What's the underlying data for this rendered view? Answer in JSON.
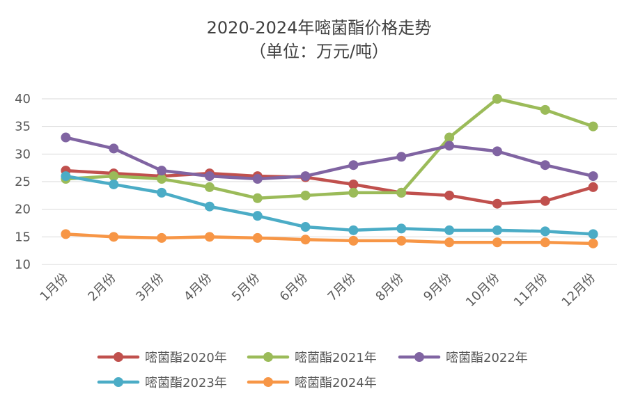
{
  "chart_data": {
    "type": "line",
    "title": "2020-2024年嘧菌酯价格走势",
    "subtitle": "（单位：万元/吨）",
    "categories": [
      "1月份",
      "2月份",
      "3月份",
      "4月份",
      "5月份",
      "6月份",
      "7月份",
      "8月份",
      "9月份",
      "10月份",
      "11月份",
      "12月份"
    ],
    "ylim": [
      10,
      40
    ],
    "yticks": [
      10,
      15,
      20,
      25,
      30,
      35,
      40
    ],
    "grid": true,
    "legend_position": "bottom",
    "series": [
      {
        "name": "嘧菌酯2020年",
        "color": "#C0504D",
        "values": [
          27,
          26.5,
          26,
          26.5,
          26,
          25.8,
          24.5,
          23,
          22.5,
          21,
          21.5,
          24
        ]
      },
      {
        "name": "嘧菌酯2021年",
        "color": "#9BBB59",
        "values": [
          25.5,
          26,
          25.5,
          24,
          22,
          22.5,
          23,
          23,
          33,
          40,
          38,
          35
        ]
      },
      {
        "name": "嘧菌酯2022年",
        "color": "#8064A2",
        "values": [
          33,
          31,
          27,
          26,
          25.5,
          26,
          28,
          29.5,
          31.5,
          30.5,
          28,
          26
        ]
      },
      {
        "name": "嘧菌酯2023年",
        "color": "#4BACC6",
        "values": [
          26,
          24.5,
          23,
          20.5,
          18.8,
          16.8,
          16.2,
          16.5,
          16.2,
          16.2,
          16,
          15.5
        ]
      },
      {
        "name": "嘧菌酯2024年",
        "color": "#F79646",
        "values": [
          15.5,
          15,
          14.8,
          15,
          14.8,
          14.5,
          14.3,
          14.3,
          14,
          14,
          14,
          13.8
        ]
      }
    ]
  }
}
